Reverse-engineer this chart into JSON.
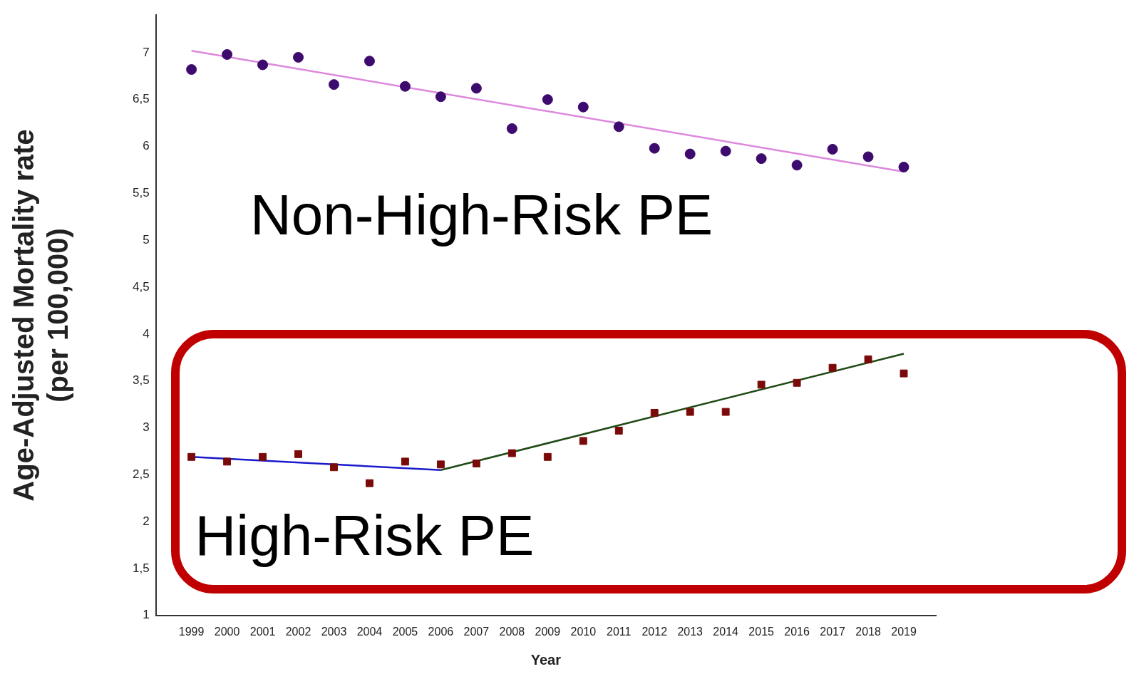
{
  "chart_data": {
    "type": "scatter",
    "xlabel": "Year",
    "ylabel": "Age-Adjusted Mortality rate\n(per 100,000)",
    "x": [
      1999,
      2000,
      2001,
      2002,
      2003,
      2004,
      2005,
      2006,
      2007,
      2008,
      2009,
      2010,
      2011,
      2012,
      2013,
      2014,
      2015,
      2016,
      2017,
      2018,
      2019
    ],
    "xlim": [
      1998,
      2019.9
    ],
    "xticks": [
      1999,
      2000,
      2001,
      2002,
      2003,
      2004,
      2005,
      2006,
      2007,
      2008,
      2009,
      2010,
      2011,
      2012,
      2013,
      2014,
      2015,
      2016,
      2017,
      2018,
      2019
    ],
    "ylim": [
      1,
      7.4
    ],
    "yticks": [
      1,
      {
        "value": 1.5,
        "label": "1,5"
      },
      2,
      {
        "value": 2.5,
        "label": "2,5"
      },
      3,
      {
        "value": 3.5,
        "label": "3,5"
      },
      4,
      {
        "value": 4.5,
        "label": "4,5"
      },
      5,
      {
        "value": 5.5,
        "label": "5,5"
      },
      6,
      {
        "value": 6.5,
        "label": "6,5"
      },
      7
    ],
    "grid": false,
    "series": [
      {
        "name": "Non-High-Risk PE",
        "type": "scatter",
        "marker": "circle",
        "color": "#3d0a6e",
        "values": [
          6.82,
          6.98,
          6.87,
          6.95,
          6.66,
          6.91,
          6.64,
          6.53,
          6.62,
          6.19,
          6.5,
          6.42,
          6.21,
          5.98,
          5.92,
          5.95,
          5.87,
          5.8,
          5.97,
          5.89,
          5.78
        ]
      },
      {
        "name": "High-Risk PE",
        "type": "scatter",
        "marker": "square",
        "color": "#7a0a0a",
        "values": [
          2.69,
          2.64,
          2.69,
          2.72,
          2.58,
          2.41,
          2.64,
          2.61,
          2.62,
          2.73,
          2.69,
          2.86,
          2.97,
          3.16,
          3.17,
          3.17,
          3.46,
          3.48,
          3.64,
          3.73,
          3.58
        ]
      },
      {
        "type": "line",
        "marker": "none",
        "color": "#dd88dd",
        "x": [
          1999,
          2019
        ],
        "values": [
          7.02,
          5.73
        ]
      },
      {
        "type": "line",
        "marker": "none",
        "color": "#1a1acc",
        "x": [
          1999,
          2006
        ],
        "values": [
          2.69,
          2.55
        ]
      },
      {
        "type": "line",
        "marker": "none",
        "color": "#1e4a12",
        "x": [
          2006,
          2019
        ],
        "values": [
          2.55,
          3.79
        ]
      }
    ]
  }
}
